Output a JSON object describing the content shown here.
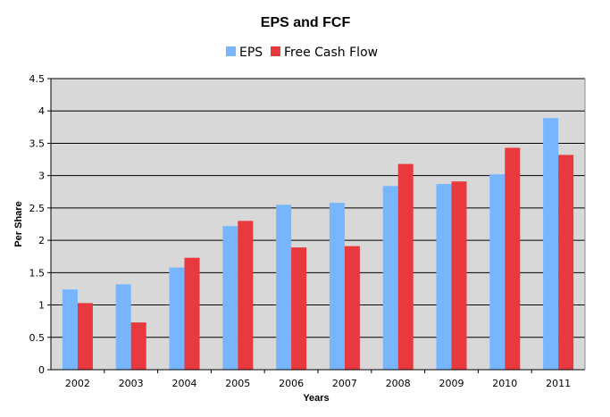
{
  "chart_data": {
    "type": "bar",
    "title": "EPS and FCF",
    "xlabel": "Years",
    "ylabel": "Per Share",
    "categories": [
      "2002",
      "2003",
      "2004",
      "2005",
      "2006",
      "2007",
      "2008",
      "2009",
      "2010",
      "2011"
    ],
    "series": [
      {
        "name": "EPS",
        "color": "#77b6ff",
        "values": [
          1.24,
          1.32,
          1.58,
          2.22,
          2.55,
          2.58,
          2.84,
          2.87,
          3.02,
          3.89
        ]
      },
      {
        "name": "Free Cash Flow",
        "color": "#e8393f",
        "values": [
          1.03,
          0.73,
          1.73,
          2.3,
          1.89,
          1.91,
          3.18,
          2.91,
          3.43,
          3.32
        ]
      }
    ],
    "ylim": [
      0,
      4.5
    ],
    "yticks": [
      "0",
      "0.5",
      "1",
      "1.5",
      "2",
      "2.5",
      "3",
      "3.5",
      "4",
      "4.5"
    ],
    "grid": true,
    "legend_position": "top-center",
    "plot_background": "#d8d8d8"
  }
}
